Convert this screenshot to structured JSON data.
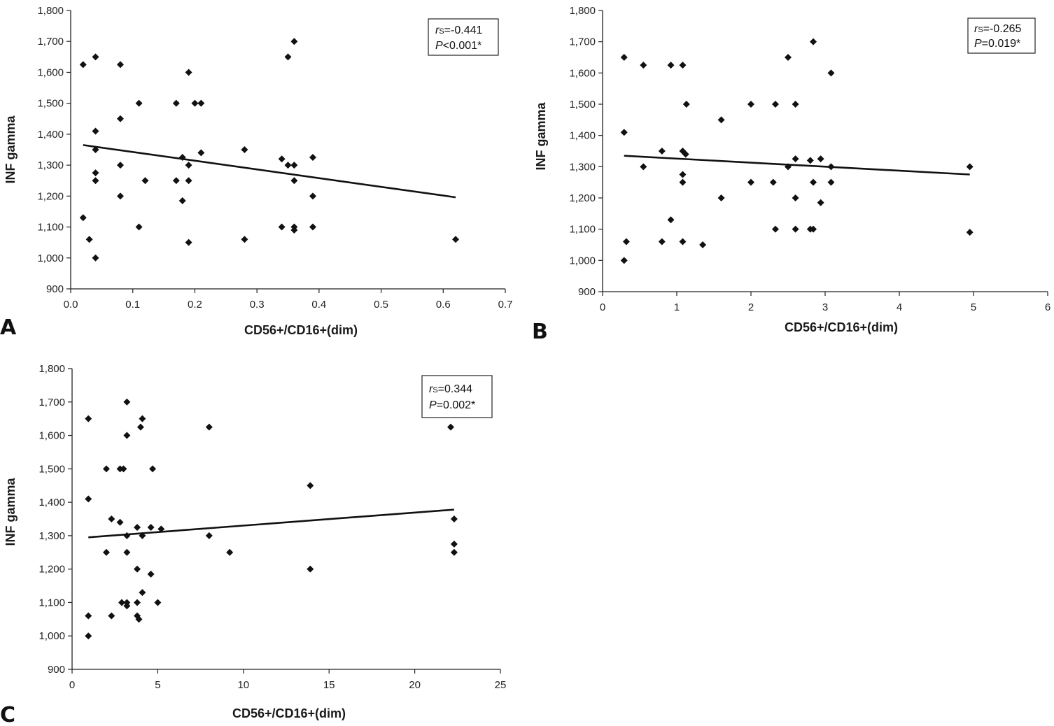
{
  "chart_data": [
    {
      "panel": "A",
      "type": "scatter",
      "xlabel": "CD56+/CD16+(dim)",
      "ylabel": "INF gamma",
      "xlim": [
        0,
        0.7
      ],
      "ylim": [
        900,
        1800
      ],
      "x_ticks": [
        0,
        0.1,
        0.2,
        0.3,
        0.4,
        0.5,
        0.6,
        0.7
      ],
      "x_tick_labels": [
        "0.0",
        "0.1",
        "0.2",
        "0.3",
        "0.4",
        "0.5",
        "0.6",
        "0.7"
      ],
      "y_ticks": [
        900,
        1000,
        1100,
        1200,
        1300,
        1400,
        1500,
        1600,
        1700,
        1800
      ],
      "y_tick_labels": [
        "900",
        "1,000",
        "1,100",
        "1,200",
        "1,300",
        "1,400",
        "1,500",
        "1,600",
        "1,700",
        "1,800"
      ],
      "points": [
        [
          0.02,
          1625
        ],
        [
          0.02,
          1130
        ],
        [
          0.03,
          1060
        ],
        [
          0.04,
          1650
        ],
        [
          0.04,
          1410
        ],
        [
          0.04,
          1350
        ],
        [
          0.04,
          1275
        ],
        [
          0.04,
          1250
        ],
        [
          0.04,
          1000
        ],
        [
          0.08,
          1625
        ],
        [
          0.08,
          1450
        ],
        [
          0.08,
          1300
        ],
        [
          0.08,
          1200
        ],
        [
          0.11,
          1500
        ],
        [
          0.11,
          1100
        ],
        [
          0.12,
          1250
        ],
        [
          0.17,
          1500
        ],
        [
          0.17,
          1250
        ],
        [
          0.18,
          1325
        ],
        [
          0.18,
          1185
        ],
        [
          0.19,
          1600
        ],
        [
          0.19,
          1300
        ],
        [
          0.19,
          1250
        ],
        [
          0.19,
          1050
        ],
        [
          0.2,
          1500
        ],
        [
          0.21,
          1500
        ],
        [
          0.21,
          1340
        ],
        [
          0.28,
          1350
        ],
        [
          0.28,
          1060
        ],
        [
          0.34,
          1320
        ],
        [
          0.34,
          1100
        ],
        [
          0.35,
          1650
        ],
        [
          0.35,
          1300
        ],
        [
          0.36,
          1700
        ],
        [
          0.36,
          1300
        ],
        [
          0.36,
          1250
        ],
        [
          0.36,
          1100
        ],
        [
          0.36,
          1090
        ],
        [
          0.39,
          1325
        ],
        [
          0.39,
          1200
        ],
        [
          0.39,
          1100
        ],
        [
          0.62,
          1060
        ]
      ],
      "trendline": [
        [
          0.02,
          1365
        ],
        [
          0.62,
          1196
        ]
      ],
      "stats": {
        "r_label": "r",
        "r_sub": "S",
        "r_value": "=-0.441",
        "p_label": "P",
        "p_value": "<0.001*"
      },
      "stats_position": "top-right"
    },
    {
      "panel": "B",
      "type": "scatter",
      "xlabel": "CD56+/CD16+(dim)",
      "ylabel": "INF gamma",
      "xlim": [
        0,
        6
      ],
      "ylim": [
        900,
        1800
      ],
      "x_ticks": [
        0,
        1,
        2,
        3,
        4,
        5,
        6
      ],
      "x_tick_labels": [
        "0",
        "1",
        "2",
        "3",
        "4",
        "5",
        "6"
      ],
      "y_ticks": [
        900,
        1000,
        1100,
        1200,
        1300,
        1400,
        1500,
        1600,
        1700,
        1800
      ],
      "y_tick_labels": [
        "900",
        "1,000",
        "1,100",
        "1,200",
        "1,300",
        "1,400",
        "1,500",
        "1,600",
        "1,700",
        "1,800"
      ],
      "points": [
        [
          0.29,
          1650
        ],
        [
          0.29,
          1410
        ],
        [
          0.29,
          1000
        ],
        [
          0.32,
          1060
        ],
        [
          0.55,
          1625
        ],
        [
          0.55,
          1300
        ],
        [
          0.8,
          1350
        ],
        [
          0.8,
          1060
        ],
        [
          0.92,
          1625
        ],
        [
          0.92,
          1130
        ],
        [
          1.08,
          1625
        ],
        [
          1.08,
          1350
        ],
        [
          1.08,
          1275
        ],
        [
          1.08,
          1250
        ],
        [
          1.08,
          1060
        ],
        [
          1.12,
          1340
        ],
        [
          1.13,
          1500
        ],
        [
          1.35,
          1050
        ],
        [
          1.6,
          1450
        ],
        [
          1.6,
          1200
        ],
        [
          2.0,
          1500
        ],
        [
          2.0,
          1250
        ],
        [
          2.3,
          1250
        ],
        [
          2.33,
          1500
        ],
        [
          2.33,
          1100
        ],
        [
          2.5,
          1650
        ],
        [
          2.5,
          1300
        ],
        [
          2.6,
          1500
        ],
        [
          2.6,
          1325
        ],
        [
          2.6,
          1200
        ],
        [
          2.6,
          1100
        ],
        [
          2.8,
          1320
        ],
        [
          2.8,
          1100
        ],
        [
          2.84,
          1700
        ],
        [
          2.84,
          1250
        ],
        [
          2.84,
          1100
        ],
        [
          2.94,
          1325
        ],
        [
          2.94,
          1185
        ],
        [
          3.08,
          1600
        ],
        [
          3.08,
          1300
        ],
        [
          3.08,
          1250
        ],
        [
          4.95,
          1300
        ],
        [
          4.95,
          1090
        ]
      ],
      "trendline": [
        [
          0.29,
          1335
        ],
        [
          4.95,
          1275
        ]
      ],
      "stats": {
        "r_label": "r",
        "r_sub": "S",
        "r_value": "=-0.265",
        "p_label": "P",
        "p_value": "=0.019*"
      },
      "stats_position": "top-right"
    },
    {
      "panel": "C",
      "type": "scatter",
      "xlabel": "CD56+/CD16+(dim)",
      "ylabel": "INF gamma",
      "xlim": [
        0,
        25
      ],
      "ylim": [
        900,
        1800
      ],
      "x_ticks": [
        0,
        5,
        10,
        15,
        20,
        25
      ],
      "x_tick_labels": [
        "0",
        "5",
        "10",
        "15",
        "20",
        "25"
      ],
      "y_ticks": [
        900,
        1000,
        1100,
        1200,
        1300,
        1400,
        1500,
        1600,
        1700,
        1800
      ],
      "y_tick_labels": [
        "900",
        "1,000",
        "1,100",
        "1,200",
        "1,300",
        "1,400",
        "1,500",
        "1,600",
        "1,700",
        "1,800"
      ],
      "points": [
        [
          0.95,
          1650
        ],
        [
          0.95,
          1410
        ],
        [
          0.95,
          1060
        ],
        [
          0.95,
          1000
        ],
        [
          2.0,
          1500
        ],
        [
          2.0,
          1250
        ],
        [
          2.3,
          1350
        ],
        [
          2.3,
          1060
        ],
        [
          2.8,
          1500
        ],
        [
          2.8,
          1340
        ],
        [
          2.9,
          1100
        ],
        [
          3.0,
          1500
        ],
        [
          3.2,
          1700
        ],
        [
          3.2,
          1600
        ],
        [
          3.2,
          1300
        ],
        [
          3.2,
          1250
        ],
        [
          3.2,
          1100
        ],
        [
          3.2,
          1090
        ],
        [
          3.8,
          1325
        ],
        [
          3.8,
          1200
        ],
        [
          3.8,
          1100
        ],
        [
          3.8,
          1060
        ],
        [
          3.9,
          1050
        ],
        [
          4.0,
          1625
        ],
        [
          4.1,
          1650
        ],
        [
          4.1,
          1300
        ],
        [
          4.1,
          1130
        ],
        [
          4.6,
          1325
        ],
        [
          4.6,
          1185
        ],
        [
          4.7,
          1500
        ],
        [
          5.0,
          1100
        ],
        [
          5.2,
          1320
        ],
        [
          8.0,
          1625
        ],
        [
          8.0,
          1300
        ],
        [
          9.2,
          1250
        ],
        [
          13.9,
          1450
        ],
        [
          13.9,
          1200
        ],
        [
          22.1,
          1625
        ],
        [
          22.3,
          1350
        ],
        [
          22.3,
          1275
        ],
        [
          22.3,
          1250
        ]
      ],
      "trendline": [
        [
          0.95,
          1295
        ],
        [
          22.3,
          1378
        ]
      ],
      "stats": {
        "r_label": "r",
        "r_sub": "S",
        "r_value": "=0.344",
        "p_label": "P",
        "p_value": "=0.002*"
      },
      "stats_position": "top-right"
    }
  ]
}
